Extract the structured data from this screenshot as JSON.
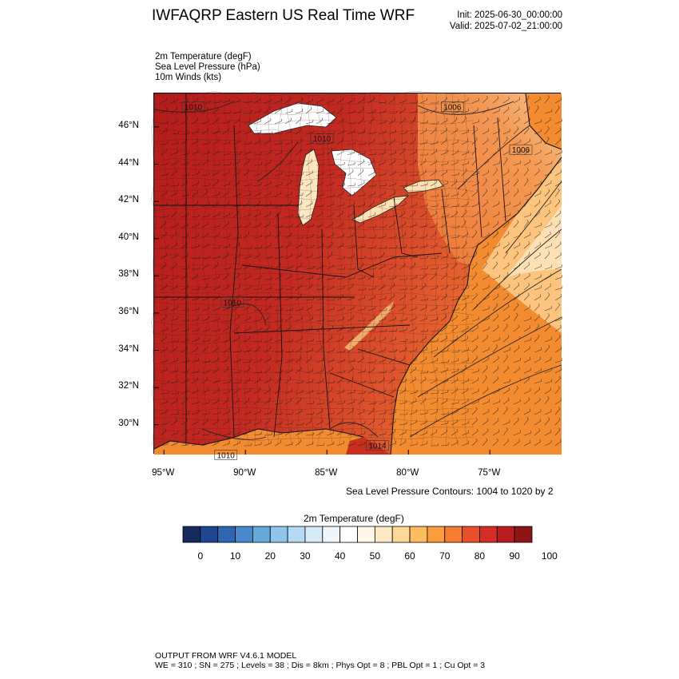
{
  "header": {
    "title": "IWFAQRP Eastern US Real Time WRF",
    "init": "Init: 2025-06-30_00:00:00",
    "valid": "Valid: 2025-07-02_21:00:00"
  },
  "fields": [
    "2m Temperature   (degF)",
    "Sea Level Pressure   (hPa)",
    "10m Winds   (kts)"
  ],
  "map": {
    "lon_range": [
      -95.6,
      -70.6
    ],
    "lat_range": [
      28.4,
      47.8
    ],
    "lat_ticks": [
      {
        "value": 46,
        "label": "46°N"
      },
      {
        "value": 44,
        "label": "44°N"
      },
      {
        "value": 42,
        "label": "42°N"
      },
      {
        "value": 40,
        "label": "40°N"
      },
      {
        "value": 38,
        "label": "38°N"
      },
      {
        "value": 36,
        "label": "36°N"
      },
      {
        "value": 34,
        "label": "34°N"
      },
      {
        "value": 32,
        "label": "32°N"
      },
      {
        "value": 30,
        "label": "30°N"
      }
    ],
    "lon_ticks": [
      {
        "value": -95,
        "label": "95°W"
      },
      {
        "value": -90,
        "label": "90°W"
      },
      {
        "value": -85,
        "label": "85°W"
      },
      {
        "value": -80,
        "label": "80°W"
      },
      {
        "value": -75,
        "label": "75°W"
      }
    ],
    "contour_labels": [
      {
        "text": "1010",
        "lon": -93.2,
        "lat": 47.0
      },
      {
        "text": "1006",
        "lon": -77.3,
        "lat": 47.0
      },
      {
        "text": "1010",
        "lon": -85.3,
        "lat": 45.3
      },
      {
        "text": "1006",
        "lon": -73.1,
        "lat": 44.7
      },
      {
        "text": "1010",
        "lon": -90.8,
        "lat": 36.5
      },
      {
        "text": "1014",
        "lon": -81.9,
        "lat": 28.8
      },
      {
        "text": "1010",
        "lon": -91.2,
        "lat": 28.3
      }
    ],
    "colors": {
      "hot": "#b91c1c",
      "warm": "#e0442a",
      "ocean": "#f38b30",
      "cool_coast": "#fcc47c",
      "lake": "#ffffff",
      "state_line": "#000000",
      "county_line": "#3a1a12"
    }
  },
  "contour_note": "Sea Level Pressure Contours: 1004 to 1020 by 2",
  "colorbar": {
    "title": "2m Temperature  (degF)",
    "colors": [
      "#152a5d",
      "#1f4690",
      "#2e66b2",
      "#4889cb",
      "#67a9db",
      "#8fc5ea",
      "#b5daf3",
      "#d6ebf8",
      "#f0f7fc",
      "#ffffff",
      "#fff7ea",
      "#fee8c2",
      "#fdd796",
      "#fdbc5f",
      "#fb9d3e",
      "#f57c31",
      "#e7502b",
      "#d42d26",
      "#b91c1c",
      "#8f1416"
    ],
    "ticks": [
      "0",
      "10",
      "20",
      "30",
      "40",
      "50",
      "60",
      "70",
      "80",
      "90",
      "100"
    ]
  },
  "footer": {
    "line1": "OUTPUT FROM WRF V4.6.1 MODEL",
    "line2": "WE = 310 ; SN = 275 ; Levels = 38 ; Dis = 8km ; Phys Opt = 8 ; PBL Opt = 1 ; Cu Opt = 3"
  }
}
